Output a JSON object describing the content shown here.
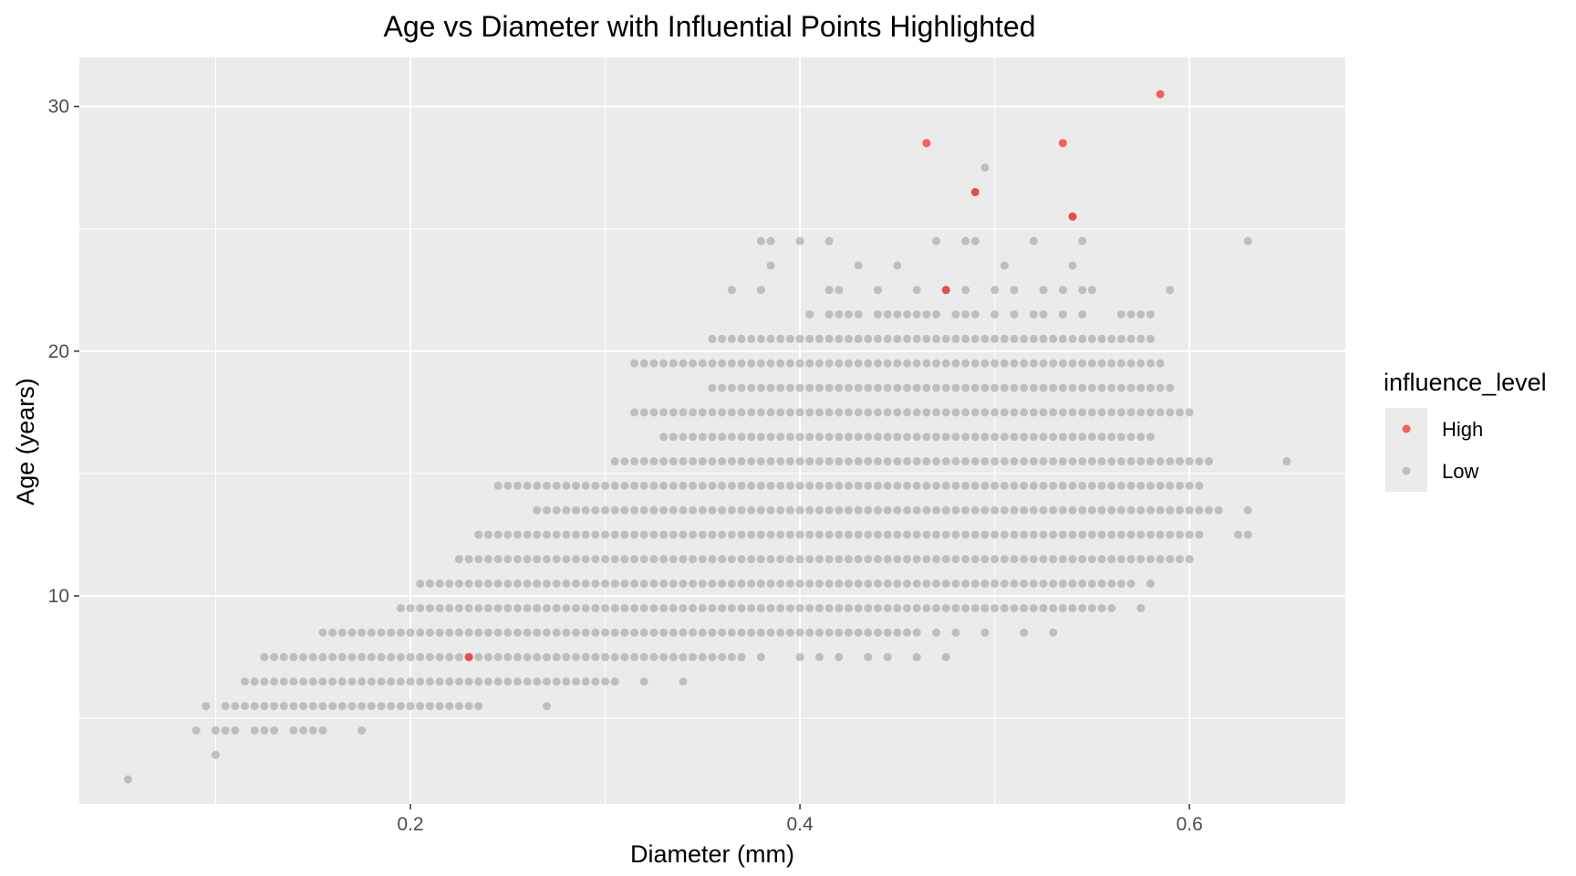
{
  "chart_data": {
    "type": "scatter",
    "title": "Age vs Diameter with Influential Points Highlighted",
    "xlabel": "Diameter (mm)",
    "ylabel": "Age (years)",
    "xlim": [
      0.03,
      0.68
    ],
    "ylim": [
      1.5,
      32
    ],
    "x_ticks": [
      0.2,
      0.4,
      0.6
    ],
    "x_tick_labels": [
      "0.2",
      "0.4",
      "0.6"
    ],
    "y_ticks": [
      10,
      20,
      30
    ],
    "y_tick_labels": [
      "10",
      "20",
      "30"
    ],
    "x_minor_ticks": [
      0.1,
      0.3,
      0.5
    ],
    "y_minor_ticks": [
      5,
      15,
      25
    ],
    "grid": true,
    "legend": {
      "title": "influence_level",
      "position": "right",
      "entries": [
        {
          "label": "High",
          "color": "#ff0000"
        },
        {
          "label": "Low",
          "color": "#a0a0a0"
        }
      ]
    },
    "series": [
      {
        "name": "High",
        "color": "#ff0000",
        "points": [
          [
            0.23,
            7.5
          ],
          [
            0.475,
            22.5
          ],
          [
            0.465,
            28.5
          ],
          [
            0.49,
            26.5
          ],
          [
            0.535,
            28.5
          ],
          [
            0.54,
            25.5
          ],
          [
            0.585,
            30.5
          ]
        ]
      },
      {
        "name": "Low",
        "color": "#a0a0a0",
        "bands": [
          {
            "y": 2.5,
            "x": [
              0.055
            ]
          },
          {
            "y": 3.5,
            "x": [
              0.1
            ]
          },
          {
            "y": 4.5,
            "x": [
              0.09,
              0.1,
              0.105,
              0.11,
              0.12,
              0.125,
              0.13,
              0.14,
              0.145,
              0.15,
              0.155,
              0.175
            ]
          },
          {
            "y": 5.5,
            "x": [
              0.095,
              0.105,
              0.11,
              0.115,
              0.12,
              0.125,
              0.13,
              0.135,
              0.14,
              0.145,
              0.15,
              0.155,
              0.16,
              0.165,
              0.17,
              0.175,
              0.18,
              0.185,
              0.19,
              0.195,
              0.2,
              0.205,
              0.21,
              0.215,
              0.22,
              0.225,
              0.23,
              0.235,
              0.27
            ]
          },
          {
            "y": 6.5,
            "range": [
              0.115,
              0.3,
              0.005
            ],
            "x": [
              0.305,
              0.32,
              0.34
            ]
          },
          {
            "y": 7.5,
            "range": [
              0.125,
              0.37,
              0.005
            ],
            "x": [
              0.38,
              0.4,
              0.41,
              0.42,
              0.435,
              0.445,
              0.46,
              0.475
            ]
          },
          {
            "y": 8.5,
            "range": [
              0.155,
              0.46,
              0.005
            ],
            "x": [
              0.47,
              0.48,
              0.495,
              0.515,
              0.53
            ]
          },
          {
            "y": 9.5,
            "range": [
              0.195,
              0.56,
              0.005
            ],
            "x": [
              0.575
            ]
          },
          {
            "y": 10.5,
            "range": [
              0.205,
              0.555,
              0.005
            ],
            "x": [
              0.56,
              0.565,
              0.57,
              0.58
            ]
          },
          {
            "y": 11.5,
            "range": [
              0.225,
              0.6,
              0.005
            ]
          },
          {
            "y": 12.5,
            "range": [
              0.235,
              0.605,
              0.005
            ],
            "x": [
              0.625,
              0.63
            ]
          },
          {
            "y": 13.5,
            "range": [
              0.265,
              0.615,
              0.005
            ],
            "x": [
              0.63
            ]
          },
          {
            "y": 14.5,
            "range": [
              0.245,
              0.605,
              0.005
            ]
          },
          {
            "y": 15.5,
            "range": [
              0.305,
              0.61,
              0.005
            ],
            "x": [
              0.65
            ]
          },
          {
            "y": 16.5,
            "range": [
              0.33,
              0.58,
              0.005
            ]
          },
          {
            "y": 17.5,
            "range": [
              0.315,
              0.6,
              0.005
            ]
          },
          {
            "y": 18.5,
            "range": [
              0.355,
              0.59,
              0.005
            ]
          },
          {
            "y": 19.5,
            "range": [
              0.315,
              0.585,
              0.005
            ]
          },
          {
            "y": 20.5,
            "range": [
              0.355,
              0.58,
              0.005
            ]
          },
          {
            "y": 21.5,
            "x": [
              0.405,
              0.415,
              0.42,
              0.425,
              0.43,
              0.44,
              0.445,
              0.45,
              0.455,
              0.46,
              0.465,
              0.47,
              0.48,
              0.485,
              0.49,
              0.5,
              0.51,
              0.52,
              0.525,
              0.535,
              0.545,
              0.565,
              0.57,
              0.575,
              0.58
            ]
          },
          {
            "y": 22.5,
            "x": [
              0.365,
              0.38,
              0.415,
              0.42,
              0.44,
              0.46,
              0.475,
              0.485,
              0.5,
              0.51,
              0.525,
              0.535,
              0.545,
              0.55,
              0.59
            ]
          },
          {
            "y": 23.5,
            "x": [
              0.385,
              0.43,
              0.45,
              0.505,
              0.54
            ]
          },
          {
            "y": 24.5,
            "x": [
              0.38,
              0.385,
              0.4,
              0.415,
              0.47,
              0.485,
              0.49,
              0.52,
              0.545,
              0.63
            ]
          },
          {
            "y": 25.5,
            "x": [
              0.54
            ]
          },
          {
            "y": 26.5,
            "x": [
              0.49
            ]
          },
          {
            "y": 27.5,
            "x": [
              0.495
            ]
          }
        ]
      }
    ]
  }
}
